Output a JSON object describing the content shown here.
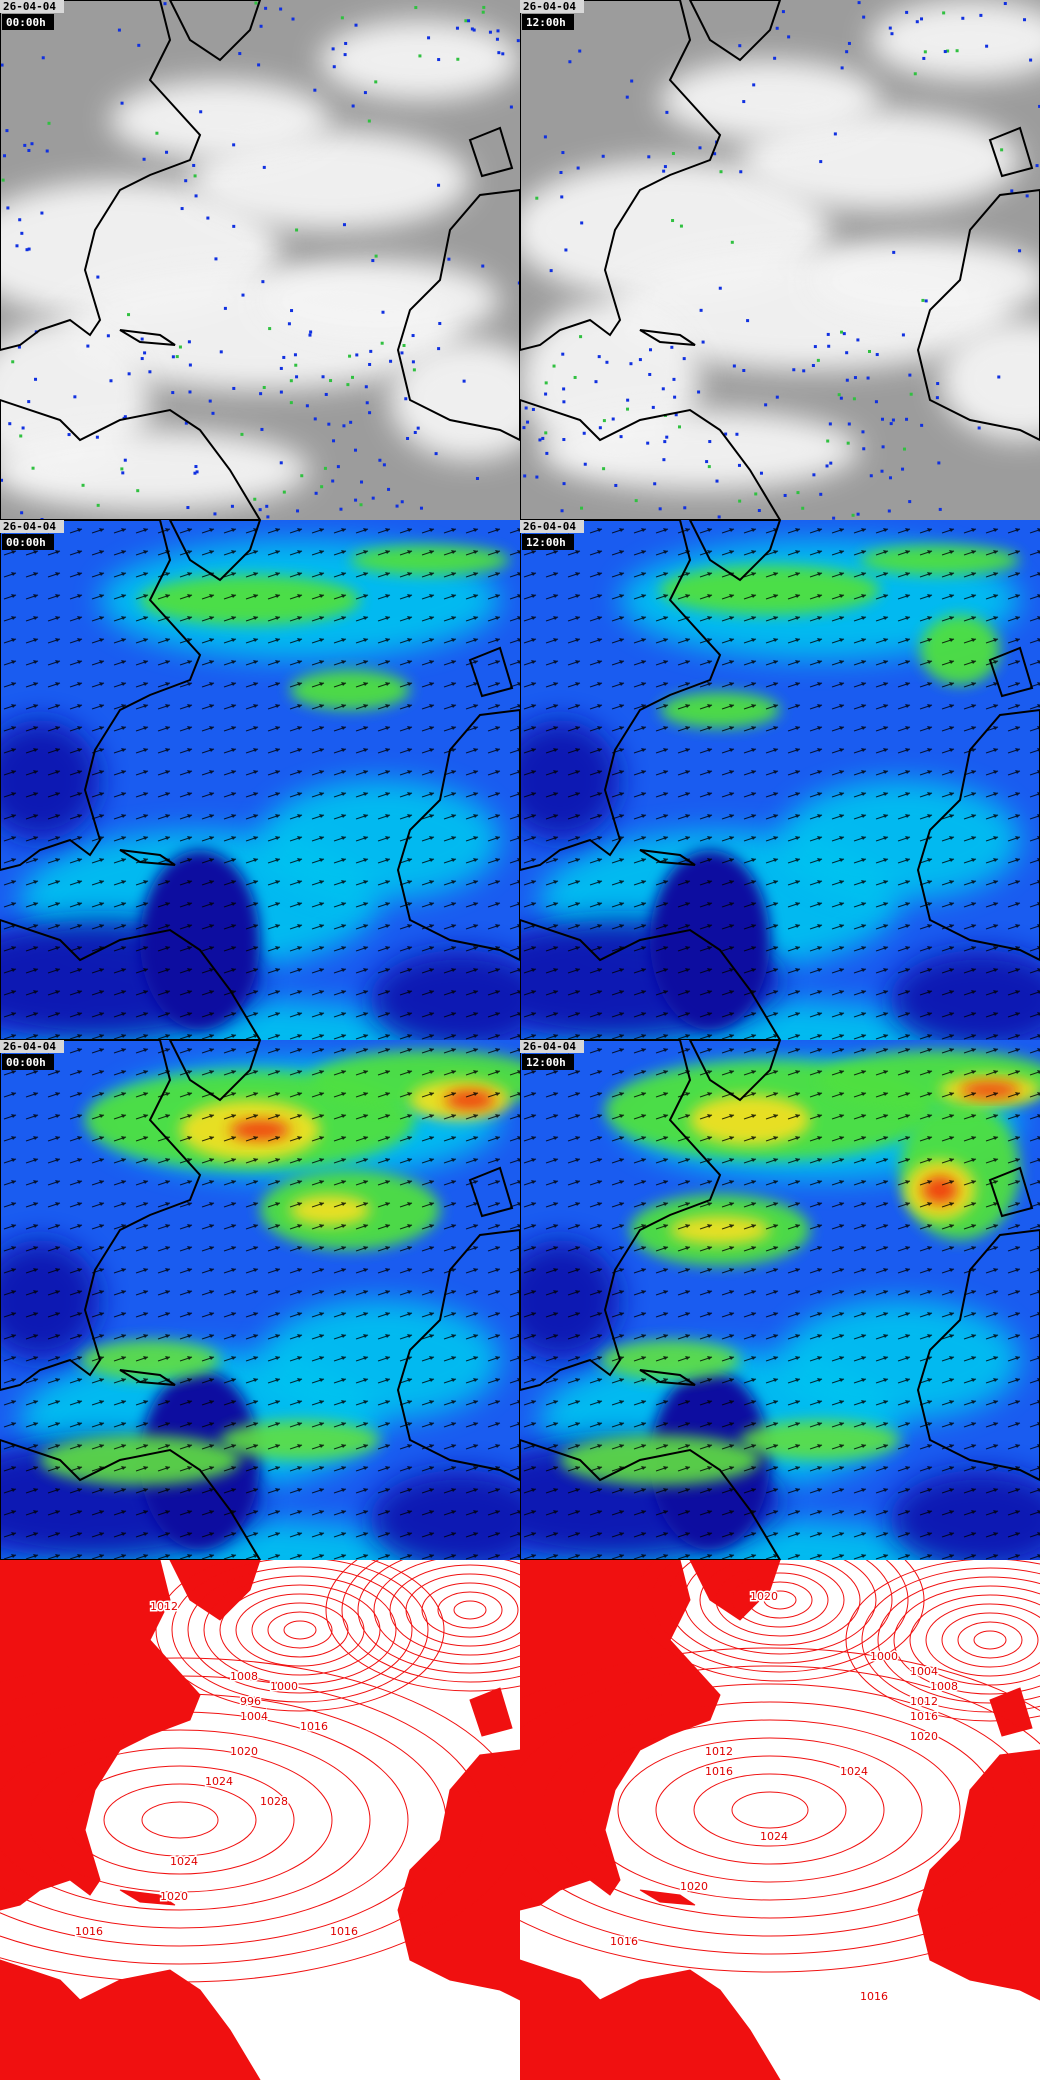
{
  "panels": [
    {
      "date": "26-04-04",
      "time": "00:00h"
    },
    {
      "date": "26-04-04",
      "time": "12:00h"
    },
    {
      "date": "26-04-04",
      "time": "00:00h"
    },
    {
      "date": "26-04-04",
      "time": "12:00h"
    },
    {
      "date": "26-04-04",
      "time": "00:00h"
    },
    {
      "date": "26-04-04",
      "time": "12:00h"
    }
  ],
  "pressure_panels": [
    {
      "labels": [
        1012,
        1008,
        1000,
        996,
        1004,
        1016,
        1020,
        1024,
        1028,
        1024,
        1020,
        1016,
        1016
      ]
    },
    {
      "labels": [
        1020,
        1000,
        1004,
        1008,
        1012,
        1016,
        1020,
        1024,
        1012,
        1016,
        1024,
        1020,
        1016,
        1016
      ]
    }
  ]
}
